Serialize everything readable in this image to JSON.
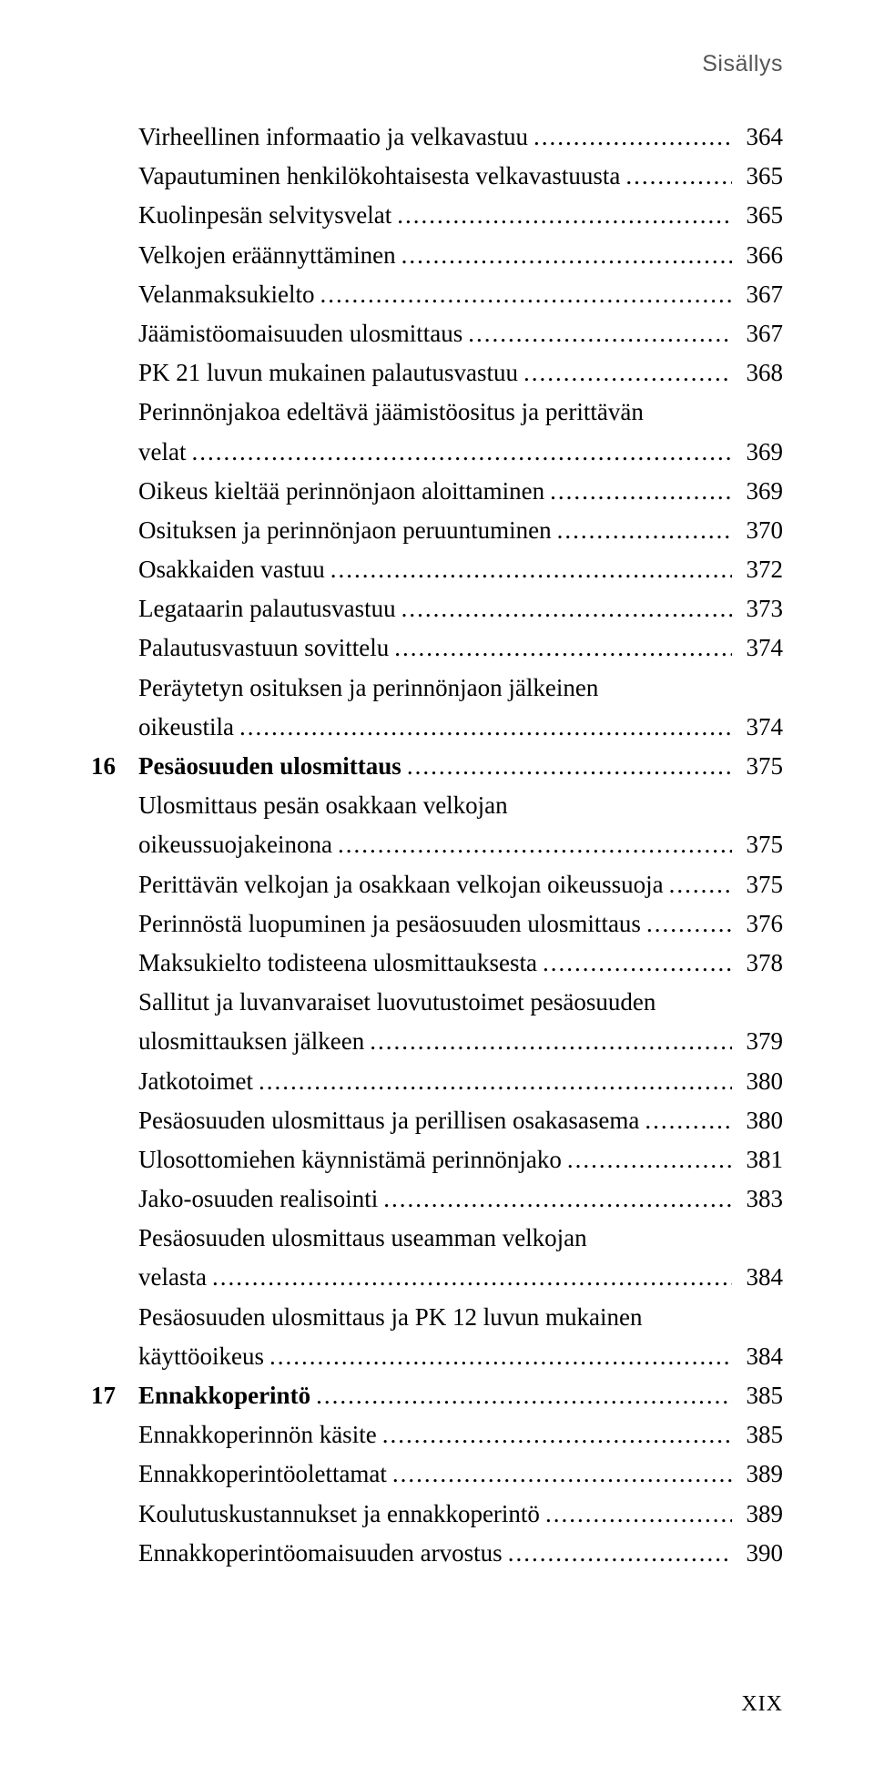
{
  "running_head": "Sisällys",
  "page_number": "XIX",
  "leader_char": ".",
  "toc": [
    {
      "num": "",
      "label": "Virheellinen informaatio ja velkavastuu",
      "page": "364",
      "bold": false
    },
    {
      "num": "",
      "label": "Vapautuminen henkilökohtaisesta velkavastuusta",
      "page": "365",
      "bold": false
    },
    {
      "num": "",
      "label": "Kuolinpesän selvitysvelat",
      "page": "365",
      "bold": false
    },
    {
      "num": "",
      "label": "Velkojen eräännyttäminen",
      "page": "366",
      "bold": false
    },
    {
      "num": "",
      "label": "Velanmaksukielto",
      "page": "367",
      "bold": false
    },
    {
      "num": "",
      "label": "Jäämistöomaisuuden ulosmittaus",
      "page": "367",
      "bold": false
    },
    {
      "num": "",
      "label": "PK 21 luvun mukainen palautusvastuu",
      "page": "368",
      "bold": false
    },
    {
      "num": "",
      "label": "Perinnönjakoa edeltävä jäämistöositus ja perittävän",
      "label2": "velat",
      "page": "369",
      "bold": false,
      "wrap": true
    },
    {
      "num": "",
      "label": "Oikeus kieltää perinnönjaon aloittaminen",
      "page": "369",
      "bold": false
    },
    {
      "num": "",
      "label": "Osituksen ja perinnönjaon peruuntuminen",
      "page": "370",
      "bold": false
    },
    {
      "num": "",
      "label": "Osakkaiden vastuu",
      "page": "372",
      "bold": false
    },
    {
      "num": "",
      "label": "Legataarin palautusvastuu",
      "page": "373",
      "bold": false
    },
    {
      "num": "",
      "label": "Palautusvastuun sovittelu",
      "page": "374",
      "bold": false
    },
    {
      "num": "",
      "label": "Peräytetyn osituksen ja perinnönjaon jälkeinen",
      "label2": "oikeustila",
      "page": "374",
      "bold": false,
      "wrap": true
    },
    {
      "num": "16",
      "label": "Pesäosuuden ulosmittaus",
      "page": "375",
      "bold": true
    },
    {
      "num": "",
      "label": "Ulosmittaus pesän osakkaan velkojan",
      "label2": "oikeussuojakeinona",
      "page": "375",
      "bold": false,
      "wrap": true
    },
    {
      "num": "",
      "label": "Perittävän velkojan ja osakkaan velkojan oikeussuoja",
      "page": "375",
      "bold": false
    },
    {
      "num": "",
      "label": "Perinnöstä luopuminen ja pesäosuuden ulosmittaus",
      "page": "376",
      "bold": false
    },
    {
      "num": "",
      "label": "Maksukielto todisteena ulosmittauksesta",
      "page": "378",
      "bold": false
    },
    {
      "num": "",
      "label": "Sallitut ja luvanvaraiset luovutustoimet pesäosuuden",
      "label2": "ulosmittauksen jälkeen",
      "page": "379",
      "bold": false,
      "wrap": true
    },
    {
      "num": "",
      "label": "Jatkotoimet",
      "page": "380",
      "bold": false
    },
    {
      "num": "",
      "label": "Pesäosuuden ulosmittaus ja perillisen osakasasema",
      "page": "380",
      "bold": false
    },
    {
      "num": "",
      "label": "Ulosottomiehen käynnistämä perinnönjako",
      "page": "381",
      "bold": false
    },
    {
      "num": "",
      "label": "Jako-osuuden realisointi",
      "page": "383",
      "bold": false
    },
    {
      "num": "",
      "label": "Pesäosuuden ulosmittaus useamman velkojan",
      "label2": "velasta",
      "page": "384",
      "bold": false,
      "wrap": true
    },
    {
      "num": "",
      "label": "Pesäosuuden ulosmittaus ja PK 12 luvun mukainen",
      "label2": "käyttöoikeus",
      "page": "384",
      "bold": false,
      "wrap": true
    },
    {
      "num": "17",
      "label": "Ennakkoperintö",
      "page": "385",
      "bold": true
    },
    {
      "num": "",
      "label": "Ennakkoperinnön käsite",
      "page": "385",
      "bold": false
    },
    {
      "num": "",
      "label": "Ennakkoperintöolettamat",
      "page": "389",
      "bold": false
    },
    {
      "num": "",
      "label": "Koulutuskustannukset ja ennakkoperintö",
      "page": "389",
      "bold": false
    },
    {
      "num": "",
      "label": "Ennakkoperintöomaisuuden arvostus",
      "page": "390",
      "bold": false
    }
  ]
}
